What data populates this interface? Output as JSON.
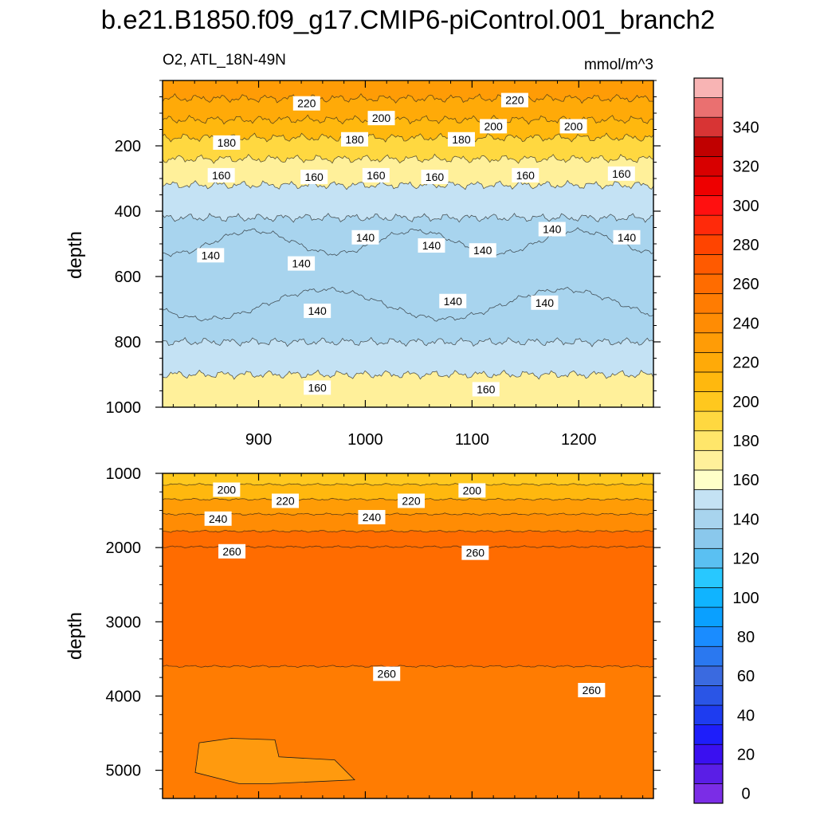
{
  "chart_data": {
    "type": "contour",
    "title": "b.e21.B1850.f09_g17.CMIP6-piControl.001_branch2",
    "subtitle_left": "O2, ATL_18N-49N",
    "units": "mmol/m^3",
    "xlim": [
      810,
      1270
    ],
    "x_ticks": [
      900,
      1000,
      1100,
      1200
    ],
    "x_tick_labels": [
      "900",
      "1000",
      "1100",
      "1200"
    ],
    "colorbar": {
      "levels": [
        -5,
        5,
        15,
        25,
        35,
        45,
        55,
        65,
        75,
        85,
        95,
        105,
        115,
        125,
        135,
        145,
        155,
        165,
        175,
        185,
        195,
        205,
        215,
        225,
        235,
        245,
        255,
        265,
        275,
        285,
        295,
        305,
        315,
        325,
        335,
        345,
        355
      ],
      "colors": [
        "#7b2de6",
        "#5a1ee6",
        "#3a10f0",
        "#1e1efa",
        "#1e3cf0",
        "#2a55e6",
        "#3a6ae0",
        "#2a78f0",
        "#1a8cff",
        "#0aa0ff",
        "#10b4ff",
        "#28c8ff",
        "#5ac0f2",
        "#8ac8ec",
        "#a8d4ee",
        "#c4e2f4",
        "#ffffc8",
        "#fff09a",
        "#ffe66a",
        "#ffd840",
        "#ffc81e",
        "#ffb80e",
        "#ffaa08",
        "#ff9c06",
        "#ff8c04",
        "#ff7c02",
        "#ff6c00",
        "#ff5a00",
        "#ff4400",
        "#ff2a0a",
        "#ff1010",
        "#ee0000",
        "#d80000",
        "#c00000",
        "#d83434",
        "#ea7070",
        "#f8b4b4"
      ],
      "tick_values": [
        0,
        20,
        40,
        60,
        80,
        100,
        120,
        140,
        160,
        180,
        200,
        220,
        240,
        260,
        280,
        300,
        320,
        340
      ],
      "tick_labels": [
        "0",
        "20",
        "40",
        "60",
        "80",
        "100",
        "120",
        "140",
        "160",
        "180",
        "200",
        "220",
        "240",
        "260",
        "280",
        "300",
        "320",
        "340"
      ]
    },
    "panels": [
      {
        "name": "upper",
        "ylabel": "depth",
        "ylim": [
          0,
          1000
        ],
        "y_ticks": [
          200,
          400,
          600,
          800,
          1000
        ],
        "y_tick_labels": [
          "200",
          "400",
          "600",
          "800",
          "1000"
        ],
        "show_x_tick_labels": true,
        "bands": [
          {
            "depth_top": 0,
            "depth_bottom": 55,
            "value": 225
          },
          {
            "depth_top": 55,
            "depth_bottom": 120,
            "value": 220
          },
          {
            "depth_top": 120,
            "depth_bottom": 175,
            "value": 205
          },
          {
            "depth_top": 175,
            "depth_bottom": 240,
            "value": 185
          },
          {
            "depth_top": 240,
            "depth_bottom": 320,
            "value": 165
          },
          {
            "depth_top": 320,
            "depth_bottom": 420,
            "value": 150
          },
          {
            "depth_top": 420,
            "depth_bottom": 800,
            "value": 142
          },
          {
            "depth_top": 800,
            "depth_bottom": 900,
            "value": 152
          },
          {
            "depth_top": 900,
            "depth_bottom": 1000,
            "value": 165
          }
        ],
        "core": {
          "value": 135,
          "depth_top_range": [
            460,
            530
          ],
          "depth_bottom_range": [
            640,
            730
          ]
        },
        "contour_labels": [
          {
            "text": "220",
            "x": 945,
            "depth": 70
          },
          {
            "text": "220",
            "x": 1140,
            "depth": 60
          },
          {
            "text": "200",
            "x": 1015,
            "depth": 115
          },
          {
            "text": "200",
            "x": 1120,
            "depth": 140
          },
          {
            "text": "200",
            "x": 1195,
            "depth": 140
          },
          {
            "text": "180",
            "x": 870,
            "depth": 190
          },
          {
            "text": "180",
            "x": 990,
            "depth": 180
          },
          {
            "text": "180",
            "x": 1090,
            "depth": 180
          },
          {
            "text": "160",
            "x": 865,
            "depth": 290
          },
          {
            "text": "160",
            "x": 952,
            "depth": 295
          },
          {
            "text": "160",
            "x": 1010,
            "depth": 290
          },
          {
            "text": "160",
            "x": 1065,
            "depth": 295
          },
          {
            "text": "160",
            "x": 1150,
            "depth": 290
          },
          {
            "text": "160",
            "x": 1240,
            "depth": 285
          },
          {
            "text": "140",
            "x": 855,
            "depth": 535
          },
          {
            "text": "140",
            "x": 940,
            "depth": 560
          },
          {
            "text": "140",
            "x": 1000,
            "depth": 480
          },
          {
            "text": "140",
            "x": 1062,
            "depth": 505
          },
          {
            "text": "140",
            "x": 1110,
            "depth": 520
          },
          {
            "text": "140",
            "x": 1175,
            "depth": 455
          },
          {
            "text": "140",
            "x": 1245,
            "depth": 480
          },
          {
            "text": "140",
            "x": 955,
            "depth": 705
          },
          {
            "text": "140",
            "x": 1082,
            "depth": 675
          },
          {
            "text": "140",
            "x": 1168,
            "depth": 680
          },
          {
            "text": "160",
            "x": 955,
            "depth": 940
          },
          {
            "text": "160",
            "x": 1113,
            "depth": 945
          }
        ]
      },
      {
        "name": "lower",
        "ylabel": "depth",
        "ylim": [
          1000,
          5380
        ],
        "y_ticks": [
          1000,
          2000,
          3000,
          4000,
          5000
        ],
        "y_tick_labels": [
          "1000",
          "2000",
          "3000",
          "4000",
          "5000"
        ],
        "show_x_tick_labels": false,
        "bands": [
          {
            "depth_top": 1000,
            "depth_bottom": 1150,
            "value": 195
          },
          {
            "depth_top": 1150,
            "depth_bottom": 1350,
            "value": 210
          },
          {
            "depth_top": 1350,
            "depth_bottom": 1550,
            "value": 225
          },
          {
            "depth_top": 1550,
            "depth_bottom": 1780,
            "value": 240
          },
          {
            "depth_top": 1780,
            "depth_bottom": 1990,
            "value": 255
          },
          {
            "depth_top": 1990,
            "depth_bottom": 3600,
            "value": 262
          },
          {
            "depth_top": 3600,
            "depth_bottom": 5380,
            "value": 252
          }
        ],
        "contour_labels": [
          {
            "text": "200",
            "x": 870,
            "depth": 1220
          },
          {
            "text": "220",
            "x": 925,
            "depth": 1370
          },
          {
            "text": "220",
            "x": 1043,
            "depth": 1370
          },
          {
            "text": "200",
            "x": 1100,
            "depth": 1230
          },
          {
            "text": "240",
            "x": 862,
            "depth": 1610
          },
          {
            "text": "240",
            "x": 1006,
            "depth": 1590
          },
          {
            "text": "260",
            "x": 875,
            "depth": 2050
          },
          {
            "text": "260",
            "x": 1103,
            "depth": 2070
          },
          {
            "text": "260",
            "x": 1020,
            "depth": 3700
          },
          {
            "text": "260",
            "x": 1212,
            "depth": 3920
          }
        ]
      }
    ]
  }
}
